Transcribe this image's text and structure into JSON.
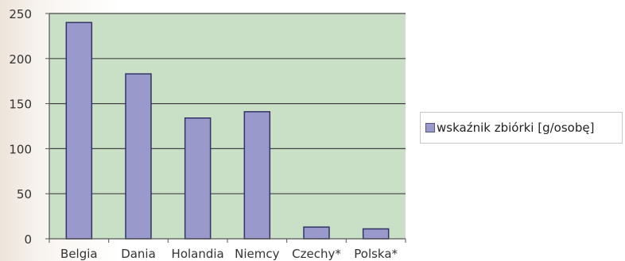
{
  "chart_data": {
    "type": "bar",
    "categories": [
      "Belgia",
      "Dania",
      "Holandia",
      "Niemcy",
      "Czechy*",
      "Polska*"
    ],
    "series": [
      {
        "name": "wskaźnik zbiórki [g/osobę]",
        "values": [
          240,
          183,
          134,
          141,
          13,
          11
        ]
      }
    ],
    "y_ticks": [
      "0",
      "50",
      "100",
      "150",
      "200",
      "250"
    ],
    "ylim": [
      0,
      250
    ],
    "grid": true,
    "legend_position": "right",
    "colors": {
      "plot_background": "#c9dfc6",
      "bar_fill": "#9999cc",
      "bar_stroke": "#333366",
      "gridline": "#444444",
      "axis": "#555555",
      "tick_text": "#333333"
    }
  }
}
